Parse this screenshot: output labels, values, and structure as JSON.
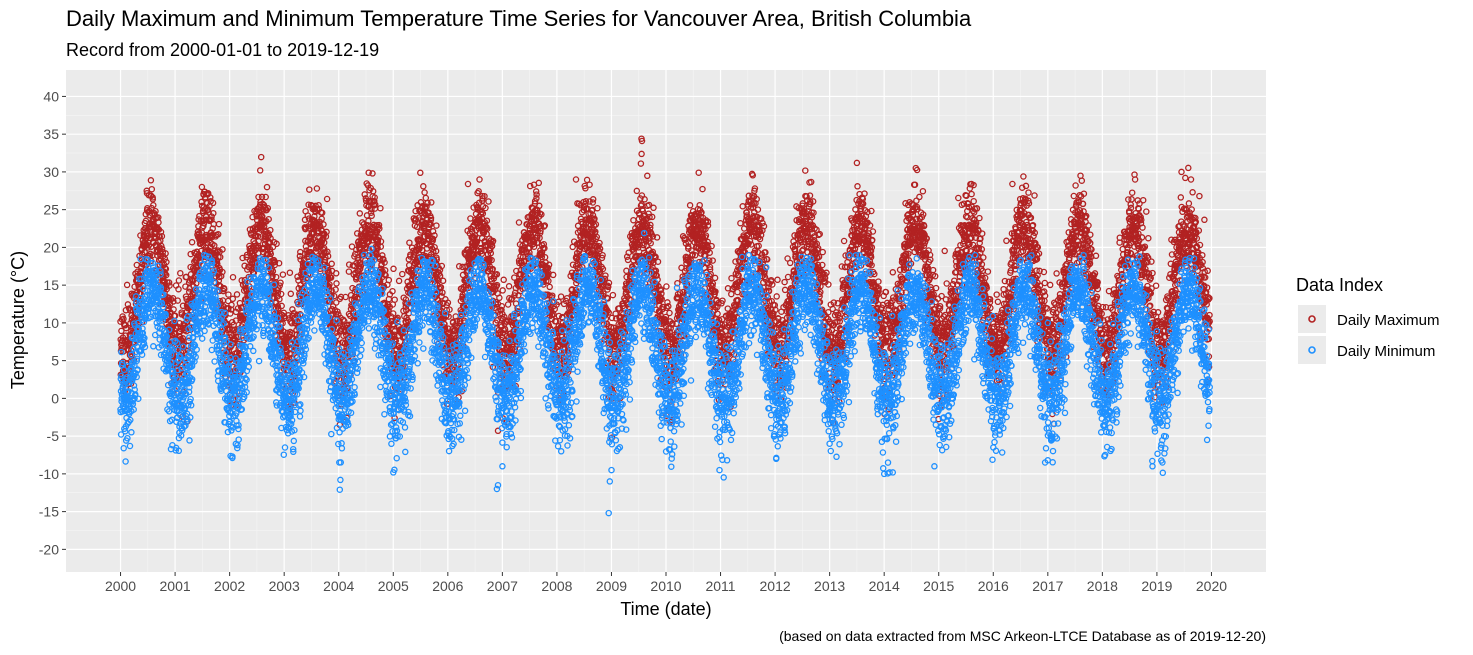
{
  "chart_data": {
    "type": "scatter",
    "title": "Daily Maximum and Minimum Temperature Time Series for Vancouver Area, British Columbia",
    "subtitle": "Record from 2000-01-01 to 2019-12-19",
    "xlabel": "Time (date)",
    "ylabel": "Temperature (°C)",
    "caption": "(based on data extracted from MSC Arkeon-LTCE Database as of 2019-12-20)",
    "xlim": [
      1999.0,
      2021.0
    ],
    "ylim": [
      -23.0,
      43.5
    ],
    "x_ticks": [
      2000,
      2001,
      2002,
      2003,
      2004,
      2005,
      2006,
      2007,
      2008,
      2009,
      2010,
      2011,
      2012,
      2013,
      2014,
      2015,
      2016,
      2017,
      2018,
      2019,
      2020
    ],
    "x_tick_labels": [
      "2000",
      "2001",
      "2002",
      "2003",
      "2004",
      "2005",
      "2006",
      "2007",
      "2008",
      "2009",
      "2010",
      "2011",
      "2012",
      "2013",
      "2014",
      "2015",
      "2016",
      "2017",
      "2018",
      "2019",
      "2020"
    ],
    "y_ticks": [
      -20,
      -15,
      -10,
      -5,
      0,
      5,
      10,
      15,
      20,
      25,
      30,
      35,
      40
    ],
    "y_tick_labels": [
      "-20",
      "-15",
      "-10",
      "-5",
      "0",
      "5",
      "10",
      "15",
      "20",
      "25",
      "30",
      "35",
      "40"
    ],
    "grid": true,
    "legend": {
      "title": "Data Index",
      "position": "right",
      "entries": [
        "Daily Maximum",
        "Daily Minimum"
      ]
    },
    "series": [
      {
        "name": "Daily Maximum",
        "color": "#B22222",
        "date_range": [
          "2000-01-01",
          "2019-12-19"
        ],
        "seasonal_model": {
          "mean": 14.5,
          "amplitude": 8.3,
          "peak_day_of_year": 209,
          "noise_sd": 2.6
        },
        "extremes": [
          {
            "x": 2000.48,
            "y": 27.5
          },
          {
            "x": 2001.52,
            "y": 27.0
          },
          {
            "x": 2002.56,
            "y": 30.2
          },
          {
            "x": 2003.6,
            "y": 27.8
          },
          {
            "x": 2004.55,
            "y": 29.9
          },
          {
            "x": 2004.62,
            "y": 29.8
          },
          {
            "x": 2006.37,
            "y": 28.4
          },
          {
            "x": 2006.58,
            "y": 29.0
          },
          {
            "x": 2007.58,
            "y": 28.3
          },
          {
            "x": 2008.35,
            "y": 29.0
          },
          {
            "x": 2008.6,
            "y": 28.3
          },
          {
            "x": 2009.55,
            "y": 34.4
          },
          {
            "x": 2009.56,
            "y": 34.1
          },
          {
            "x": 2009.54,
            "y": 31.1
          },
          {
            "x": 2010.6,
            "y": 29.9
          },
          {
            "x": 2011.62,
            "y": 27.5
          },
          {
            "x": 2012.63,
            "y": 28.6
          },
          {
            "x": 2013.5,
            "y": 31.2
          },
          {
            "x": 2013.51,
            "y": 28.1
          },
          {
            "x": 2014.55,
            "y": 28.3
          },
          {
            "x": 2015.6,
            "y": 28.4
          },
          {
            "x": 2016.35,
            "y": 28.4
          },
          {
            "x": 2017.6,
            "y": 29.5
          },
          {
            "x": 2018.6,
            "y": 29.0
          },
          {
            "x": 2019.45,
            "y": 30.0
          },
          {
            "x": 2019.52,
            "y": 29.2
          },
          {
            "x": 2006.92,
            "y": -4.3
          },
          {
            "x": 2004.02,
            "y": -3.5
          },
          {
            "x": 2009.01,
            "y": -5.2
          }
        ]
      },
      {
        "name": "Daily Minimum",
        "color": "#1E90FF",
        "date_range": [
          "2000-01-01",
          "2019-12-19"
        ],
        "seasonal_model": {
          "mean": 7.0,
          "amplitude": 7.5,
          "peak_day_of_year": 209,
          "noise_sd": 2.6
        },
        "extremes": [
          {
            "x": 2000.95,
            "y": -6.2
          },
          {
            "x": 2002.05,
            "y": -7.9
          },
          {
            "x": 2004.02,
            "y": -12.1
          },
          {
            "x": 2004.03,
            "y": -10.8
          },
          {
            "x": 2004.01,
            "y": -8.5
          },
          {
            "x": 2005.0,
            "y": -9.8
          },
          {
            "x": 2006.9,
            "y": -12.0
          },
          {
            "x": 2006.92,
            "y": -11.5
          },
          {
            "x": 2007.0,
            "y": -9.0
          },
          {
            "x": 2008.95,
            "y": -15.2
          },
          {
            "x": 2008.97,
            "y": -11.0
          },
          {
            "x": 2009.0,
            "y": -9.5
          },
          {
            "x": 2010.98,
            "y": -9.5
          },
          {
            "x": 2011.12,
            "y": -8.2
          },
          {
            "x": 2012.02,
            "y": -8.0
          },
          {
            "x": 2013.0,
            "y": -6.0
          },
          {
            "x": 2014.0,
            "y": -10.0
          },
          {
            "x": 2014.1,
            "y": -9.8
          },
          {
            "x": 2014.92,
            "y": -9.0
          },
          {
            "x": 2016.0,
            "y": -6.5
          },
          {
            "x": 2016.95,
            "y": -8.5
          },
          {
            "x": 2017.0,
            "y": -8.2
          },
          {
            "x": 2018.05,
            "y": -7.5
          },
          {
            "x": 2018.92,
            "y": -9.0
          },
          {
            "x": 2019.1,
            "y": -8.5
          },
          {
            "x": 2019.92,
            "y": -5.5
          },
          {
            "x": 2009.6,
            "y": 21.9
          },
          {
            "x": 2004.6,
            "y": 19.8
          }
        ]
      }
    ]
  }
}
